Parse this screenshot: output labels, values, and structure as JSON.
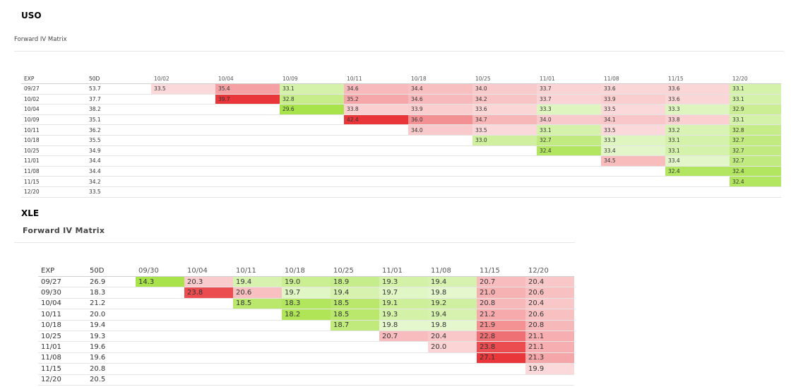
{
  "uso": {
    "ticker": "USO",
    "title": "Forward IV Matrix",
    "headers": [
      "EXP",
      "50D",
      "10/02",
      "10/04",
      "10/09",
      "10/11",
      "10/18",
      "10/25",
      "11/01",
      "11/08",
      "11/15",
      "12/20"
    ],
    "rows": [
      {
        "exp": "09/27",
        "d50": "53.7",
        "cells": [
          "33.5",
          "35.4",
          "33.1",
          "34.6",
          "34.4",
          "34.0",
          "33.7",
          "33.6",
          "33.6",
          "33.1"
        ]
      },
      {
        "exp": "10/02",
        "d50": "37.7",
        "cells": [
          "",
          "39.7",
          "32.8",
          "35.2",
          "34.6",
          "34.2",
          "33.7",
          "33.9",
          "33.6",
          "33.1"
        ]
      },
      {
        "exp": "10/04",
        "d50": "38.2",
        "cells": [
          "",
          "",
          "29.6",
          "33.8",
          "33.9",
          "33.6",
          "33.3",
          "33.5",
          "33.3",
          "32.9"
        ]
      },
      {
        "exp": "10/09",
        "d50": "35.1",
        "cells": [
          "",
          "",
          "",
          "42.4",
          "36.0",
          "34.7",
          "34.0",
          "34.1",
          "33.8",
          "33.1"
        ]
      },
      {
        "exp": "10/11",
        "d50": "36.2",
        "cells": [
          "",
          "",
          "",
          "",
          "34.0",
          "33.5",
          "33.1",
          "33.5",
          "33.2",
          "32.8"
        ]
      },
      {
        "exp": "10/18",
        "d50": "35.5",
        "cells": [
          "",
          "",
          "",
          "",
          "",
          "33.0",
          "32.7",
          "33.3",
          "33.1",
          "32.7"
        ]
      },
      {
        "exp": "10/25",
        "d50": "34.9",
        "cells": [
          "",
          "",
          "",
          "",
          "",
          "",
          "32.4",
          "33.4",
          "33.1",
          "32.7"
        ]
      },
      {
        "exp": "11/01",
        "d50": "34.4",
        "cells": [
          "",
          "",
          "",
          "",
          "",
          "",
          "",
          "34.5",
          "33.4",
          "32.7"
        ]
      },
      {
        "exp": "11/08",
        "d50": "34.4",
        "cells": [
          "",
          "",
          "",
          "",
          "",
          "",
          "",
          "",
          "32.4",
          "32.4"
        ]
      },
      {
        "exp": "11/15",
        "d50": "34.2",
        "cells": [
          "",
          "",
          "",
          "",
          "",
          "",
          "",
          "",
          "",
          "32.4"
        ]
      },
      {
        "exp": "12/20",
        "d50": "33.5",
        "cells": [
          "",
          "",
          "",
          "",
          "",
          "",
          "",
          "",
          "",
          ""
        ]
      }
    ]
  },
  "xle": {
    "ticker": "XLE",
    "title": "Forward IV Matrix",
    "headers": [
      "EXP",
      "50D",
      "09/30",
      "10/04",
      "10/11",
      "10/18",
      "10/25",
      "11/01",
      "11/08",
      "11/15",
      "12/20"
    ],
    "rows": [
      {
        "exp": "09/27",
        "d50": "26.9",
        "cells": [
          "14.3",
          "20.3",
          "19.4",
          "19.0",
          "18.9",
          "19.3",
          "19.4",
          "20.7",
          "20.4"
        ]
      },
      {
        "exp": "09/30",
        "d50": "18.3",
        "cells": [
          "",
          "23.8",
          "20.6",
          "19.7",
          "19.4",
          "19.7",
          "19.8",
          "21.0",
          "20.6"
        ]
      },
      {
        "exp": "10/04",
        "d50": "21.2",
        "cells": [
          "",
          "",
          "18.5",
          "18.3",
          "18.5",
          "19.1",
          "19.2",
          "20.8",
          "20.4"
        ]
      },
      {
        "exp": "10/11",
        "d50": "20.0",
        "cells": [
          "",
          "",
          "",
          "18.2",
          "18.5",
          "19.3",
          "19.4",
          "21.2",
          "20.6"
        ]
      },
      {
        "exp": "10/18",
        "d50": "19.4",
        "cells": [
          "",
          "",
          "",
          "",
          "18.7",
          "19.8",
          "19.8",
          "21.9",
          "20.8"
        ]
      },
      {
        "exp": "10/25",
        "d50": "19.3",
        "cells": [
          "",
          "",
          "",
          "",
          "",
          "20.7",
          "20.4",
          "22.8",
          "21.1"
        ]
      },
      {
        "exp": "11/01",
        "d50": "19.6",
        "cells": [
          "",
          "",
          "",
          "",
          "",
          "",
          "20.0",
          "23.8",
          "21.1"
        ]
      },
      {
        "exp": "11/08",
        "d50": "19.6",
        "cells": [
          "",
          "",
          "",
          "",
          "",
          "",
          "",
          "27.1",
          "21.3"
        ]
      },
      {
        "exp": "11/15",
        "d50": "20.8",
        "cells": [
          "",
          "",
          "",
          "",
          "",
          "",
          "",
          "",
          "19.9"
        ]
      },
      {
        "exp": "12/20",
        "d50": "20.5",
        "cells": [
          "",
          "",
          "",
          "",
          "",
          "",
          "",
          "",
          ""
        ]
      }
    ]
  },
  "colors": {
    "green_strong": "#a9e34b",
    "green_light": "#e8f8d4",
    "red_strong": "#e8363b",
    "red_light": "#fbd9da",
    "neutral": "#ffffff"
  }
}
